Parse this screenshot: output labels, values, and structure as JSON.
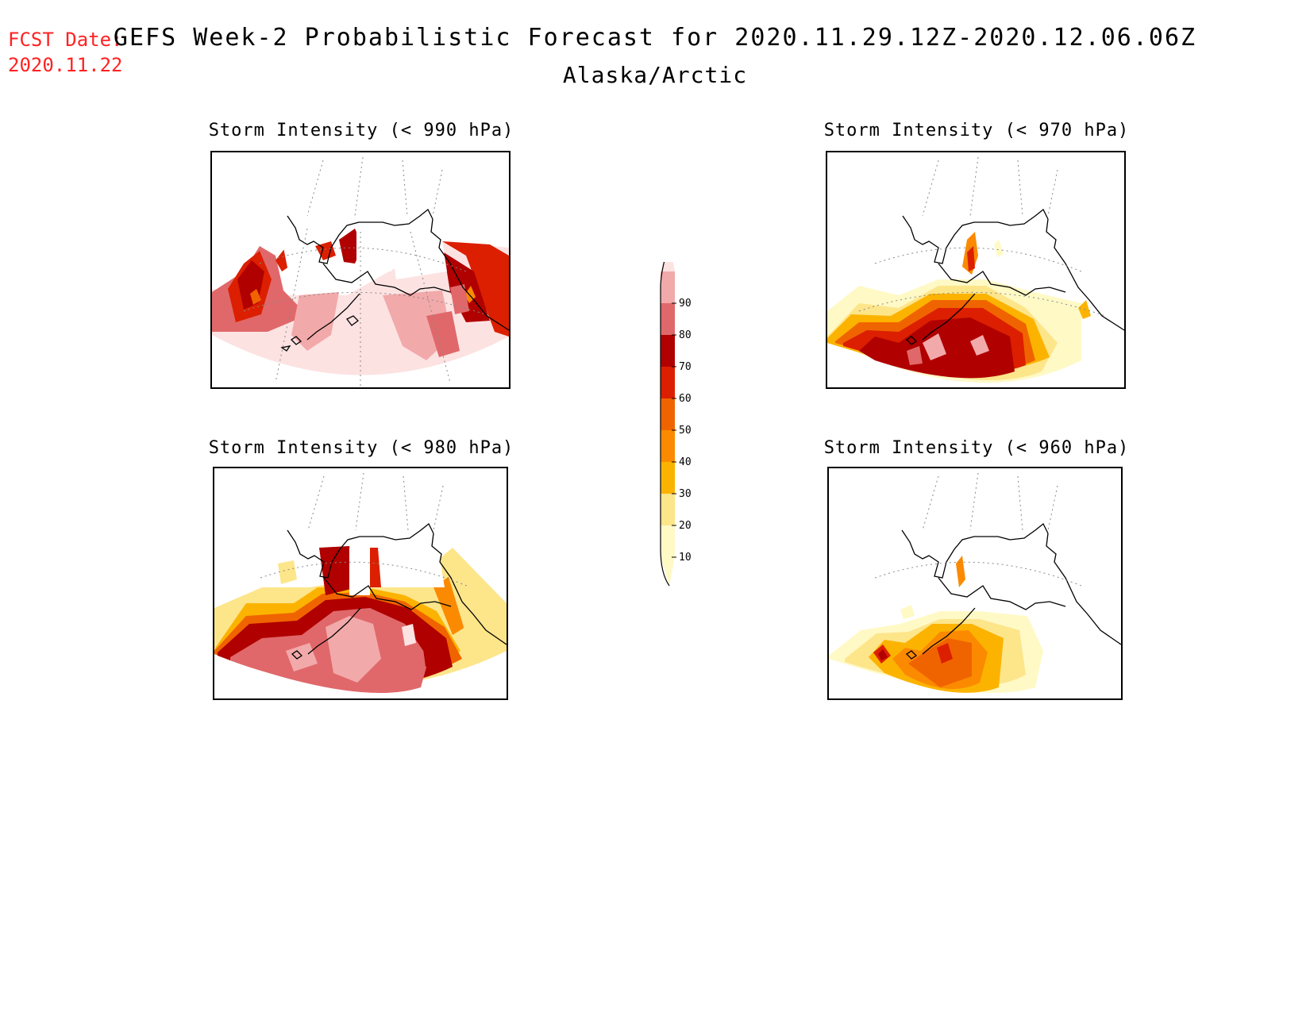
{
  "header": {
    "fcst_label": "FCST Date:",
    "fcst_date": "2020.11.22",
    "title": "GEFS Week-2 Probabilistic Forecast for 2020.11.29.12Z-2020.12.06.06Z",
    "region": "Alaska/Arctic"
  },
  "panels": [
    {
      "title": "Storm Intensity (< 990 hPa)",
      "threshold_hpa": 990,
      "dominant_level": 90
    },
    {
      "title": "Storm Intensity (< 970 hPa)",
      "threshold_hpa": 970,
      "dominant_level": 60
    },
    {
      "title": "Storm Intensity (< 980 hPa)",
      "threshold_hpa": 980,
      "dominant_level": 80
    },
    {
      "title": "Storm Intensity (< 960 hPa)",
      "threshold_hpa": 960,
      "dominant_level": 40
    }
  ],
  "colorbar": {
    "levels": [
      {
        "label": "10",
        "color": "#fff9c6"
      },
      {
        "label": "20",
        "color": "#fde58a"
      },
      {
        "label": "30",
        "color": "#fcb300"
      },
      {
        "label": "40",
        "color": "#fb8a00"
      },
      {
        "label": "50",
        "color": "#f06400"
      },
      {
        "label": "60",
        "color": "#dc1f00"
      },
      {
        "label": "70",
        "color": "#b00000"
      },
      {
        "label": "80",
        "color": "#e0686a"
      },
      {
        "label": "90",
        "color": "#f2a9aa"
      }
    ],
    "top_color": "#fde2e2"
  }
}
